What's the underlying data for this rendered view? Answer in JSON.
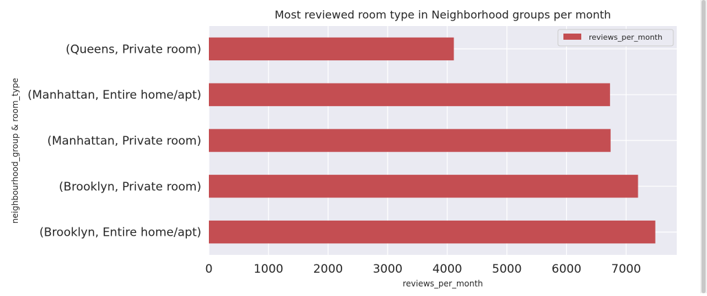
{
  "chart_data": {
    "type": "bar",
    "orientation": "horizontal",
    "title": "Most reviewed room type in Neighborhood groups per month",
    "xlabel": "reviews_per_month",
    "ylabel": "neighbourhood_group & room_type",
    "xlim": [
      0,
      7850
    ],
    "xticks": [
      0,
      1000,
      2000,
      3000,
      4000,
      5000,
      6000,
      7000
    ],
    "categories": [
      "(Brooklyn, Entire home/apt)",
      "(Brooklyn, Private room)",
      "(Manhattan, Private room)",
      "(Manhattan, Entire home/apt)",
      "(Queens, Private room)"
    ],
    "series": [
      {
        "name": "reviews_per_month",
        "values": [
          7490,
          7200,
          6740,
          6730,
          4110
        ],
        "color": "#c44e52"
      }
    ],
    "grid": true,
    "legend_position": "top-right",
    "background_color": "#eaeaf2"
  }
}
